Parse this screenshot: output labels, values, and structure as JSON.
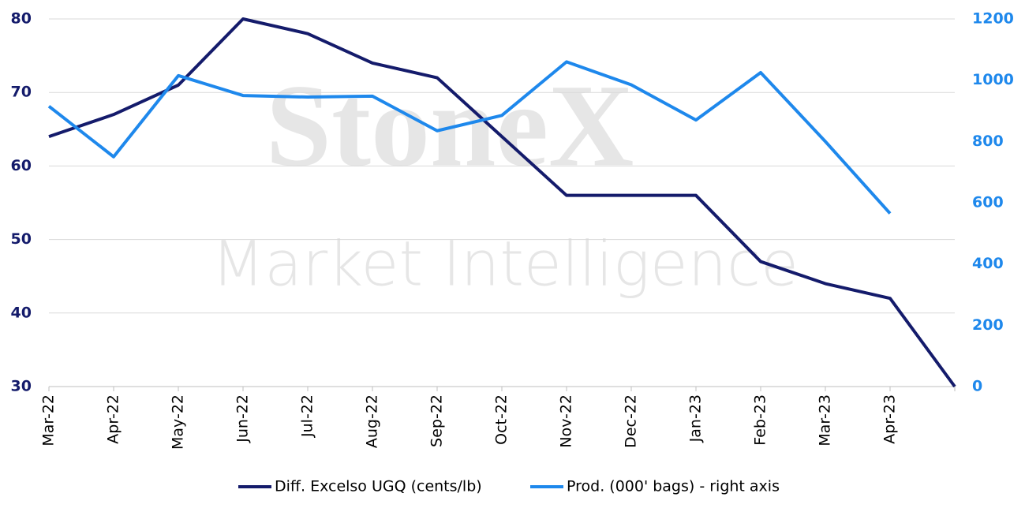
{
  "chart_data": {
    "type": "line",
    "watermark": [
      "StoneX",
      "Market Intelligence"
    ],
    "categories": [
      "Mar-22",
      "Apr-22",
      "May-22",
      "Jun-22",
      "Jul-22",
      "Aug-22",
      "Sep-22",
      "Oct-22",
      "Nov-22",
      "Dec-22",
      "Jan-23",
      "Feb-23",
      "Mar-23",
      "Apr-23",
      null
    ],
    "series": [
      {
        "name": "Diff. Excelso UGQ (cents/lb)",
        "color": "#141b6b",
        "axis": "y",
        "values": [
          64,
          67,
          71,
          80,
          78,
          74,
          72,
          64,
          56,
          56,
          56,
          47,
          44,
          42,
          30
        ]
      },
      {
        "name": "Prod. (000' bags) - right axis",
        "color": "#1e88ec",
        "axis": "y2",
        "values": [
          915,
          750,
          1015,
          950,
          945,
          948,
          835,
          885,
          1060,
          985,
          870,
          1025,
          800,
          565,
          null
        ]
      }
    ],
    "ylim": [
      30,
      80
    ],
    "yticks": [
      30,
      40,
      50,
      60,
      70,
      80
    ],
    "y2lim": [
      0,
      1200
    ],
    "y2ticks": [
      0,
      200,
      400,
      600,
      800,
      1000,
      1200
    ],
    "grid": true,
    "legend": "bottom"
  }
}
